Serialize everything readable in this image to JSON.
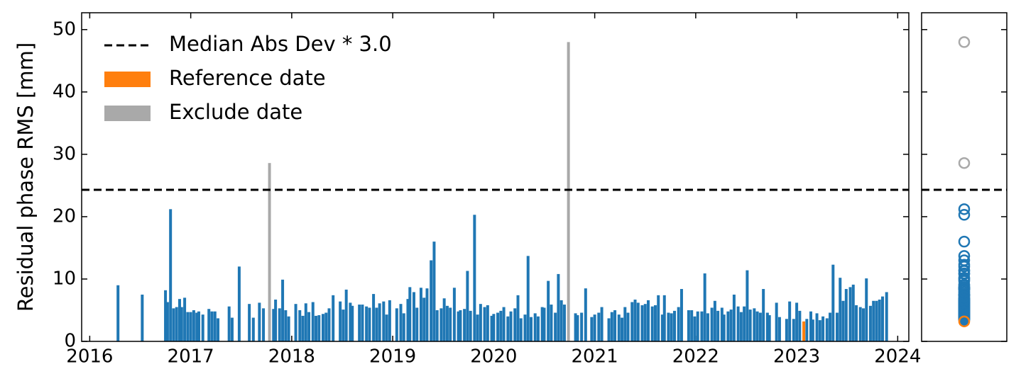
{
  "chart_data": {
    "type": "bar",
    "ylabel": "Residual phase RMS [mm]",
    "xlim": [
      2015.92,
      2024.11
    ],
    "xticks": [
      2016,
      2017,
      2018,
      2019,
      2020,
      2021,
      2022,
      2023,
      2024
    ],
    "ylim": [
      0,
      52.7
    ],
    "yticks": [
      0,
      10,
      20,
      30,
      40,
      50
    ],
    "legend": "upper left",
    "threshold": {
      "name": "Median Abs Dev * 3.0",
      "value": 24.3,
      "color": "#000000"
    },
    "series": [
      {
        "color": "#1f77b4",
        "x": [
          2016.28,
          2016.52,
          2016.75,
          2016.77,
          2016.8,
          2016.83,
          2016.86,
          2016.89,
          2016.91,
          2016.94,
          2016.97,
          2017.0,
          2017.03,
          2017.06,
          2017.08,
          2017.12,
          2017.18,
          2017.21,
          2017.24,
          2017.27,
          2017.38,
          2017.41,
          2017.48,
          2017.58,
          2017.62,
          2017.68,
          2017.72,
          2017.82,
          2017.84,
          2017.88,
          2017.91,
          2017.94,
          2017.97,
          2018.04,
          2018.08,
          2018.11,
          2018.14,
          2018.17,
          2018.21,
          2018.24,
          2018.27,
          2018.31,
          2018.34,
          2018.37,
          2018.41,
          2018.48,
          2018.51,
          2018.54,
          2018.58,
          2018.6,
          2018.67,
          2018.7,
          2018.74,
          2018.77,
          2018.81,
          2018.84,
          2018.87,
          2018.91,
          2018.94,
          2018.97,
          2019.04,
          2019.08,
          2019.11,
          2019.15,
          2019.17,
          2019.21,
          2019.24,
          2019.28,
          2019.31,
          2019.34,
          2019.38,
          2019.41,
          2019.44,
          2019.48,
          2019.51,
          2019.54,
          2019.57,
          2019.61,
          2019.65,
          2019.67,
          2019.71,
          2019.74,
          2019.77,
          2019.81,
          2019.84,
          2019.87,
          2019.91,
          2019.94,
          2019.98,
          2020.0,
          2020.04,
          2020.07,
          2020.1,
          2020.14,
          2020.17,
          2020.21,
          2020.24,
          2020.27,
          2020.31,
          2020.34,
          2020.37,
          2020.41,
          2020.44,
          2020.48,
          2020.5,
          2020.54,
          2020.57,
          2020.61,
          2020.64,
          2020.67,
          2020.7,
          2020.81,
          2020.83,
          2020.87,
          2020.91,
          2020.97,
          2021.0,
          2021.04,
          2021.07,
          2021.14,
          2021.17,
          2021.2,
          2021.24,
          2021.27,
          2021.3,
          2021.33,
          2021.37,
          2021.4,
          2021.43,
          2021.47,
          2021.5,
          2021.53,
          2021.57,
          2021.6,
          2021.63,
          2021.67,
          2021.69,
          2021.73,
          2021.76,
          2021.79,
          2021.83,
          2021.86,
          2021.93,
          2021.96,
          2021.99,
          2022.02,
          2022.06,
          2022.09,
          2022.12,
          2022.16,
          2022.19,
          2022.22,
          2022.26,
          2022.28,
          2022.32,
          2022.35,
          2022.38,
          2022.42,
          2022.45,
          2022.48,
          2022.51,
          2022.54,
          2022.58,
          2022.61,
          2022.64,
          2022.67,
          2022.71,
          2022.73,
          2022.8,
          2022.83,
          2022.9,
          2022.93,
          2022.97,
          2023.0,
          2023.03,
          2023.1,
          2023.14,
          2023.16,
          2023.2,
          2023.23,
          2023.26,
          2023.3,
          2023.33,
          2023.36,
          2023.4,
          2023.43,
          2023.46,
          2023.49,
          2023.53,
          2023.56,
          2023.59,
          2023.63,
          2023.66,
          2023.69,
          2023.73,
          2023.76,
          2023.79,
          2023.82,
          2023.85,
          2023.89
        ],
        "values": [
          9.0,
          7.5,
          8.2,
          6.3,
          21.2,
          5.3,
          5.5,
          6.8,
          5.5,
          7.0,
          4.7,
          4.7,
          5.0,
          4.6,
          4.8,
          4.3,
          5.2,
          4.8,
          4.8,
          3.7,
          5.6,
          3.8,
          12.0,
          6.0,
          3.8,
          6.2,
          5.3,
          5.2,
          6.7,
          5.3,
          9.9,
          5.0,
          4.0,
          6.0,
          5.0,
          4.1,
          6.1,
          4.7,
          6.3,
          4.1,
          4.2,
          4.4,
          4.6,
          5.3,
          7.4,
          6.4,
          5.1,
          8.3,
          6.2,
          5.7,
          5.9,
          5.9,
          5.6,
          5.4,
          7.6,
          5.4,
          6.1,
          6.4,
          4.3,
          6.6,
          5.3,
          6.0,
          4.5,
          6.8,
          8.7,
          7.9,
          5.4,
          8.6,
          7.0,
          8.5,
          13.0,
          16.0,
          5.0,
          5.3,
          6.9,
          5.7,
          5.4,
          8.6,
          4.8,
          5.0,
          5.2,
          11.3,
          4.9,
          20.3,
          4.3,
          6.0,
          5.5,
          5.8,
          4.1,
          4.4,
          4.6,
          4.9,
          5.5,
          4.0,
          4.8,
          5.3,
          7.4,
          3.7,
          4.3,
          13.7,
          3.9,
          4.5,
          4.0,
          5.5,
          5.4,
          9.7,
          5.9,
          4.6,
          10.8,
          6.6,
          5.9,
          4.5,
          4.2,
          4.6,
          8.5,
          3.9,
          4.3,
          4.6,
          5.5,
          3.7,
          4.7,
          5.0,
          4.3,
          3.8,
          5.5,
          4.6,
          6.3,
          6.7,
          6.2,
          5.8,
          6.0,
          6.6,
          5.6,
          5.8,
          7.4,
          4.3,
          7.4,
          4.6,
          4.5,
          4.9,
          5.5,
          8.4,
          5.0,
          5.0,
          4.0,
          4.8,
          4.8,
          10.9,
          4.5,
          5.4,
          6.5,
          4.9,
          5.4,
          4.3,
          4.8,
          5.1,
          7.5,
          5.6,
          4.7,
          5.6,
          11.4,
          5.1,
          5.3,
          4.8,
          4.6,
          8.4,
          4.6,
          4.2,
          6.2,
          3.9,
          3.6,
          6.4,
          3.6,
          6.2,
          4.9,
          3.6,
          4.8,
          3.5,
          4.5,
          3.4,
          4.0,
          3.7,
          4.6,
          12.3,
          4.6,
          10.2,
          6.5,
          8.4,
          8.7,
          9.1,
          5.8,
          5.5,
          5.3,
          10.1,
          5.7,
          6.5,
          6.5,
          6.7,
          7.2,
          7.9
        ]
      },
      {
        "name": "Reference date",
        "color": "#ff7f0e",
        "x": [
          2023.07
        ],
        "values": [
          3.2
        ]
      },
      {
        "name": "Exclude date",
        "color": "#a9a9a9",
        "x": [
          2017.78,
          2020.74
        ],
        "values": [
          28.6,
          48.0
        ]
      }
    ]
  }
}
